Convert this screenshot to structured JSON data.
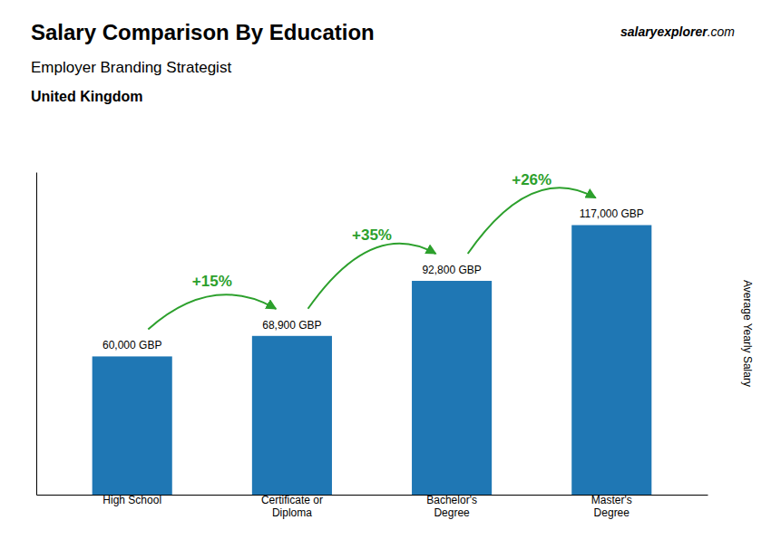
{
  "chart_data": {
    "type": "bar",
    "title": "Salary Comparison By Education",
    "subtitle": "Employer Branding Strategist",
    "annotations": [
      "United Kingdom",
      "salary",
      "explorer",
      ".com"
    ],
    "categories": [
      "High School",
      "Certificate or\nDiploma",
      "Bachelor's\nDegree",
      "Master's\nDegree"
    ],
    "values": [
      60000,
      68900,
      92800,
      117000
    ],
    "value_labels": [
      "60,000 GBP",
      "68,900 GBP",
      "92,800 GBP",
      "117,000 GBP"
    ],
    "change_labels": [
      "+15%",
      "+35%",
      "+26%"
    ],
    "ylabel": "Average Yearly Salary",
    "ylim": [
      0,
      140000
    ],
    "data_labels": true,
    "tick_labels": "x",
    "grid": false
  }
}
